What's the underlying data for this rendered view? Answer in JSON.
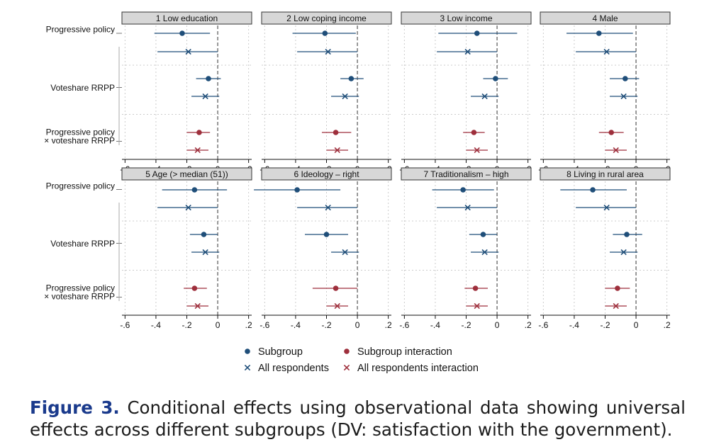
{
  "chart_data": {
    "type": "coefficient-plot",
    "x_ticks": [
      "-.6",
      "-.4",
      "-.2",
      "0",
      ".2"
    ],
    "x_tick_values": [
      -0.6,
      -0.4,
      -0.2,
      0,
      0.2
    ],
    "xlim": [
      -0.62,
      0.22
    ],
    "row_labels": [
      [
        "Progressive policy"
      ],
      [
        "Voteshare RRPP"
      ],
      [
        "Progressive policy",
        "× voteshare RRPP"
      ]
    ],
    "legend": [
      {
        "name": "Subgroup",
        "color": "#1f4e79",
        "marker": "dot"
      },
      {
        "name": "Subgroup interaction",
        "color": "#9e2f3c",
        "marker": "dot"
      },
      {
        "name": "All respondents",
        "color": "#1f4e79",
        "marker": "x"
      },
      {
        "name": "All respondents interaction",
        "color": "#9e2f3c",
        "marker": "x"
      }
    ],
    "all_respondents": [
      {
        "est": -0.19,
        "lo": -0.39,
        "hi": 0.0
      },
      {
        "est": -0.08,
        "lo": -0.17,
        "hi": 0.01
      },
      {
        "est": -0.13,
        "lo": -0.2,
        "hi": -0.06
      }
    ],
    "panels": [
      {
        "title": "1 Low education",
        "subgroup": [
          {
            "est": -0.23,
            "lo": -0.41,
            "hi": -0.05
          },
          {
            "est": -0.06,
            "lo": -0.14,
            "hi": 0.02
          },
          {
            "est": -0.12,
            "lo": -0.2,
            "hi": -0.05
          }
        ]
      },
      {
        "title": "2 Low coping income",
        "subgroup": [
          {
            "est": -0.21,
            "lo": -0.42,
            "hi": -0.01
          },
          {
            "est": -0.04,
            "lo": -0.11,
            "hi": 0.04
          },
          {
            "est": -0.14,
            "lo": -0.23,
            "hi": -0.04
          }
        ]
      },
      {
        "title": "3 Low income",
        "subgroup": [
          {
            "est": -0.13,
            "lo": -0.38,
            "hi": 0.13
          },
          {
            "est": -0.01,
            "lo": -0.09,
            "hi": 0.07
          },
          {
            "est": -0.15,
            "lo": -0.22,
            "hi": -0.08
          }
        ]
      },
      {
        "title": "4 Male",
        "subgroup": [
          {
            "est": -0.24,
            "lo": -0.45,
            "hi": -0.02
          },
          {
            "est": -0.07,
            "lo": -0.17,
            "hi": 0.02
          },
          {
            "est": -0.16,
            "lo": -0.24,
            "hi": -0.08
          }
        ]
      },
      {
        "title": "5 Age (> median (51))",
        "subgroup": [
          {
            "est": -0.15,
            "lo": -0.36,
            "hi": 0.06
          },
          {
            "est": -0.09,
            "lo": -0.18,
            "hi": 0.0
          },
          {
            "est": -0.15,
            "lo": -0.22,
            "hi": -0.07
          }
        ]
      },
      {
        "title": "6 Ideology – right",
        "subgroup": [
          {
            "est": -0.39,
            "lo": -0.67,
            "hi": -0.11
          },
          {
            "est": -0.2,
            "lo": -0.34,
            "hi": -0.06
          },
          {
            "est": -0.14,
            "lo": -0.29,
            "hi": 0.0
          }
        ]
      },
      {
        "title": "7 Traditionalism – high",
        "subgroup": [
          {
            "est": -0.22,
            "lo": -0.42,
            "hi": -0.02
          },
          {
            "est": -0.09,
            "lo": -0.18,
            "hi": 0.0
          },
          {
            "est": -0.14,
            "lo": -0.21,
            "hi": -0.06
          }
        ]
      },
      {
        "title": "8 Living in rural area",
        "subgroup": [
          {
            "est": -0.28,
            "lo": -0.49,
            "hi": -0.06
          },
          {
            "est": -0.06,
            "lo": -0.15,
            "hi": 0.04
          },
          {
            "est": -0.12,
            "lo": -0.2,
            "hi": -0.04
          }
        ]
      }
    ]
  },
  "caption": {
    "label": "Figure 3.",
    "text": "Conditional effects using observational data showing universal effects across different subgroups (DV: satisfaction with the government)."
  },
  "colors": {
    "subgroup": "#1f4e79",
    "interaction": "#9e2f3c",
    "strip": "#d7d7d7",
    "grid": "#cccccc",
    "zero_line": "#555555"
  }
}
